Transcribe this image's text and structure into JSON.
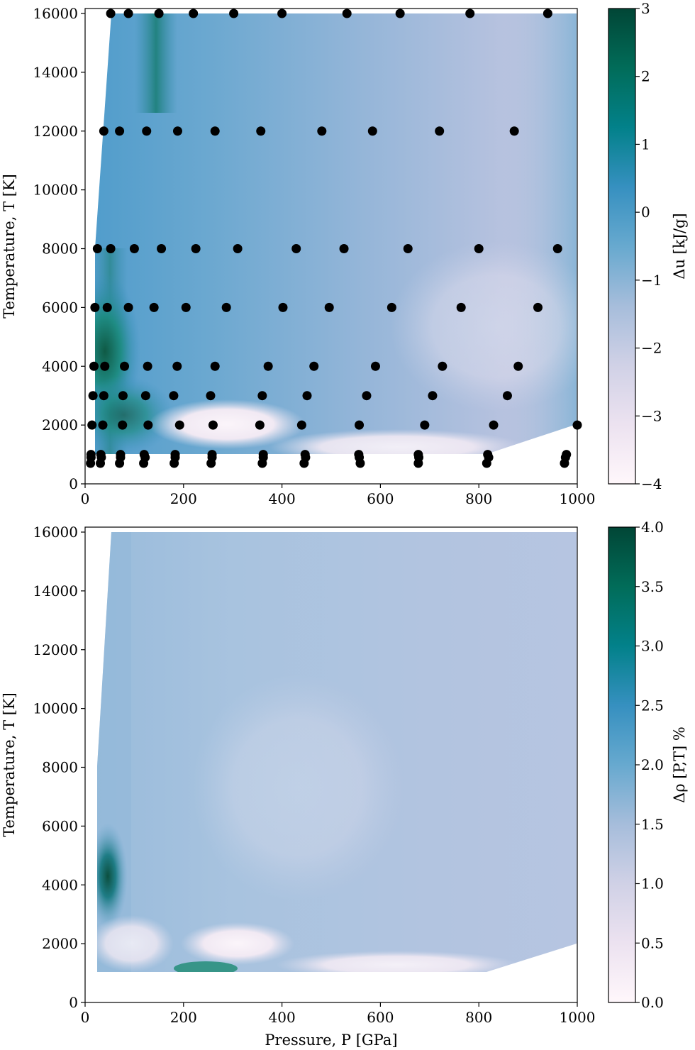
{
  "chart_data": [
    {
      "type": "heatmap",
      "xlabel": "",
      "ylabel": "Temperature, T [K]",
      "xlim": [
        0,
        1000
      ],
      "ylim": [
        0,
        16000
      ],
      "x_ticks": [
        "0",
        "200",
        "400",
        "600",
        "800",
        "1000"
      ],
      "y_ticks": [
        "0",
        "2000",
        "4000",
        "6000",
        "8000",
        "10000",
        "12000",
        "14000",
        "16000"
      ],
      "colorbar_label": "Δu [kJ/g]",
      "colorbar_range": [
        -4,
        3
      ],
      "colorbar_ticks": [
        "−4",
        "−3",
        "−2",
        "−1",
        "0",
        "1",
        "2",
        "3"
      ],
      "colormap": [
        "#fff7fb",
        "#ece2f0",
        "#d0d1e6",
        "#a6bddb",
        "#67a9cf",
        "#3690c0",
        "#02818a",
        "#016c59",
        "#014636"
      ],
      "grid": false,
      "points": [
        {
          "T": 16000,
          "P": [
            52,
            88,
            150,
            220,
            302,
            400,
            532,
            640,
            782,
            940
          ]
        },
        {
          "T": 12000,
          "P": [
            38,
            70,
            125,
            188,
            264,
            357,
            481,
            584,
            720,
            872
          ]
        },
        {
          "T": 8000,
          "P": [
            25,
            52,
            100,
            155,
            225,
            310,
            429,
            526,
            656,
            800,
            960
          ]
        },
        {
          "T": 6000,
          "P": [
            20,
            45,
            88,
            140,
            205,
            287,
            402,
            496,
            623,
            764,
            920
          ]
        },
        {
          "T": 4000,
          "P": [
            18,
            40,
            80,
            127,
            187,
            264,
            372,
            465,
            590,
            726,
            880
          ]
        },
        {
          "T": 3000,
          "P": [
            16,
            38,
            77,
            123,
            180,
            255,
            360,
            451,
            572,
            706,
            858
          ]
        },
        {
          "T": 2000,
          "P": [
            14,
            36,
            76,
            128,
            192,
            260,
            355,
            440,
            557,
            690,
            830,
            1000
          ]
        },
        {
          "T": 1000,
          "P": [
            12,
            32,
            72,
            120,
            183,
            258,
            362,
            447,
            556,
            677,
            818,
            978
          ]
        },
        {
          "T": 900,
          "P": [
            12,
            33,
            72,
            122,
            183,
            258,
            362,
            448,
            557,
            678,
            820,
            976
          ]
        },
        {
          "T": 700,
          "P": [
            11,
            31,
            70,
            119,
            181,
            256,
            360,
            445,
            559,
            677,
            816,
            974
          ]
        }
      ]
    },
    {
      "type": "heatmap",
      "xlabel": "Pressure, P [GPa]",
      "ylabel": "Temperature, T [K]",
      "xlim": [
        0,
        1000
      ],
      "ylim": [
        0,
        16000
      ],
      "x_ticks": [
        "0",
        "200",
        "400",
        "600",
        "800",
        "1000"
      ],
      "y_ticks": [
        "0",
        "2000",
        "4000",
        "6000",
        "8000",
        "10000",
        "12000",
        "14000",
        "16000"
      ],
      "colorbar_label": "Δρ [P,T] %",
      "colorbar_range": [
        0,
        4
      ],
      "colorbar_ticks": [
        "0.0",
        "0.5",
        "1.0",
        "1.5",
        "2.0",
        "2.5",
        "3.0",
        "3.5",
        "4.0"
      ],
      "colormap": [
        "#fff7fb",
        "#ece2f0",
        "#d0d1e6",
        "#a6bddb",
        "#67a9cf",
        "#3690c0",
        "#02818a",
        "#016c59",
        "#014636"
      ],
      "grid": false
    }
  ]
}
